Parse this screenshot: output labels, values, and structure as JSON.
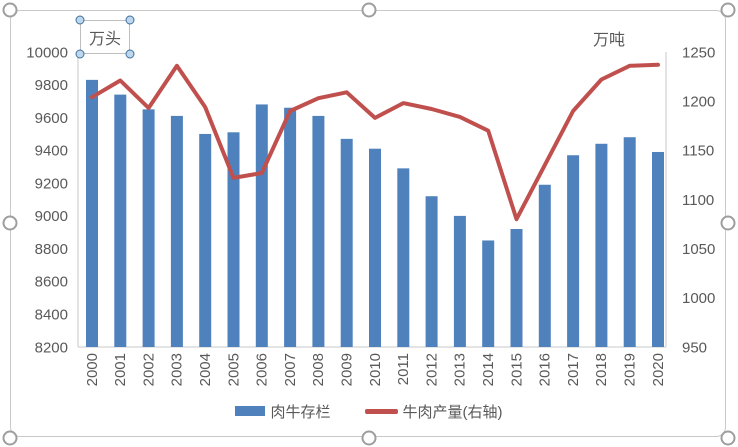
{
  "textbox": {
    "label": "万头"
  },
  "right_unit": "万吨",
  "legend": {
    "items": [
      {
        "label": "肉牛存栏",
        "type": "bar"
      },
      {
        "label": "牛肉产量(右轴)",
        "type": "line"
      }
    ]
  },
  "colors": {
    "bar": "#4F81BD",
    "line": "#C0504D",
    "axis_text": "#595959",
    "axis_line": "#C8C8C8",
    "frame_border": "#C9C9C9",
    "selection_handle": "#9E9E9E",
    "textbox_handle_fill": "#BDD7EE",
    "textbox_handle_stroke": "#41719C"
  },
  "chart_data": {
    "type": "bar",
    "subtype": "combo-bar-line",
    "categories": [
      "2000",
      "2001",
      "2002",
      "2003",
      "2004",
      "2005",
      "2006",
      "2007",
      "2008",
      "2009",
      "2010",
      "2011",
      "2012",
      "2013",
      "2014",
      "2015",
      "2016",
      "2017",
      "2018",
      "2019",
      "2020"
    ],
    "series": [
      {
        "name": "肉牛存栏",
        "type": "bar",
        "axis": "left",
        "values": [
          9830,
          9740,
          9650,
          9610,
          9500,
          9510,
          9680,
          9660,
          9610,
          9470,
          9410,
          9290,
          9120,
          9000,
          8850,
          8920,
          9190,
          9370,
          9440,
          9480,
          9390
        ]
      },
      {
        "name": "牛肉产量(右轴)",
        "type": "line",
        "axis": "right",
        "values": [
          1204,
          1221,
          1193,
          1236,
          1194,
          1122,
          1127,
          1190,
          1203,
          1209,
          1183,
          1198,
          1192,
          1184,
          1170,
          1080,
          1135,
          1190,
          1222,
          1236,
          1237
        ]
      }
    ],
    "left_axis": {
      "unit": "万头",
      "min": 8200,
      "max": 10000,
      "step": 200,
      "ticks": [
        "8200",
        "8400",
        "8600",
        "8800",
        "9000",
        "9200",
        "9400",
        "9600",
        "9800",
        "10000"
      ]
    },
    "right_axis": {
      "unit": "万吨",
      "min": 950,
      "max": 1250,
      "step": 50,
      "ticks": [
        "950",
        "1000",
        "1050",
        "1100",
        "1150",
        "1200",
        "1250"
      ]
    },
    "grid": false,
    "legend_position": "bottom"
  }
}
